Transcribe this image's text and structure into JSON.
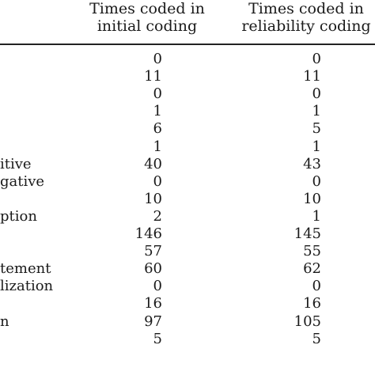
{
  "headers": {
    "initial": [
      "Times coded in",
      "initial coding"
    ],
    "reliability": [
      "Times coded in",
      "reliability coding"
    ]
  },
  "rows": [
    {
      "label": "",
      "initial": "0",
      "reliability": "0"
    },
    {
      "label": "",
      "initial": "11",
      "reliability": "11"
    },
    {
      "label": "",
      "initial": "0",
      "reliability": "0"
    },
    {
      "label": "",
      "initial": "1",
      "reliability": "1"
    },
    {
      "label": "",
      "initial": "6",
      "reliability": "5"
    },
    {
      "label": "",
      "initial": "1",
      "reliability": "1"
    },
    {
      "label": "itive",
      "initial": "40",
      "reliability": "43"
    },
    {
      "label": "gative",
      "initial": "0",
      "reliability": "0"
    },
    {
      "label": "",
      "initial": "10",
      "reliability": "10"
    },
    {
      "label": "ption",
      "initial": "2",
      "reliability": "1"
    },
    {
      "label": "",
      "initial": "146",
      "reliability": "145"
    },
    {
      "label": "",
      "initial": "57",
      "reliability": "55"
    },
    {
      "label": "tement",
      "initial": "60",
      "reliability": "62"
    },
    {
      "label": "lization",
      "initial": "0",
      "reliability": "0"
    },
    {
      "label": "",
      "initial": "16",
      "reliability": "16"
    },
    {
      "label": "n",
      "initial": "97",
      "reliability": "105"
    },
    {
      "label": "",
      "initial": "5",
      "reliability": "5"
    }
  ]
}
